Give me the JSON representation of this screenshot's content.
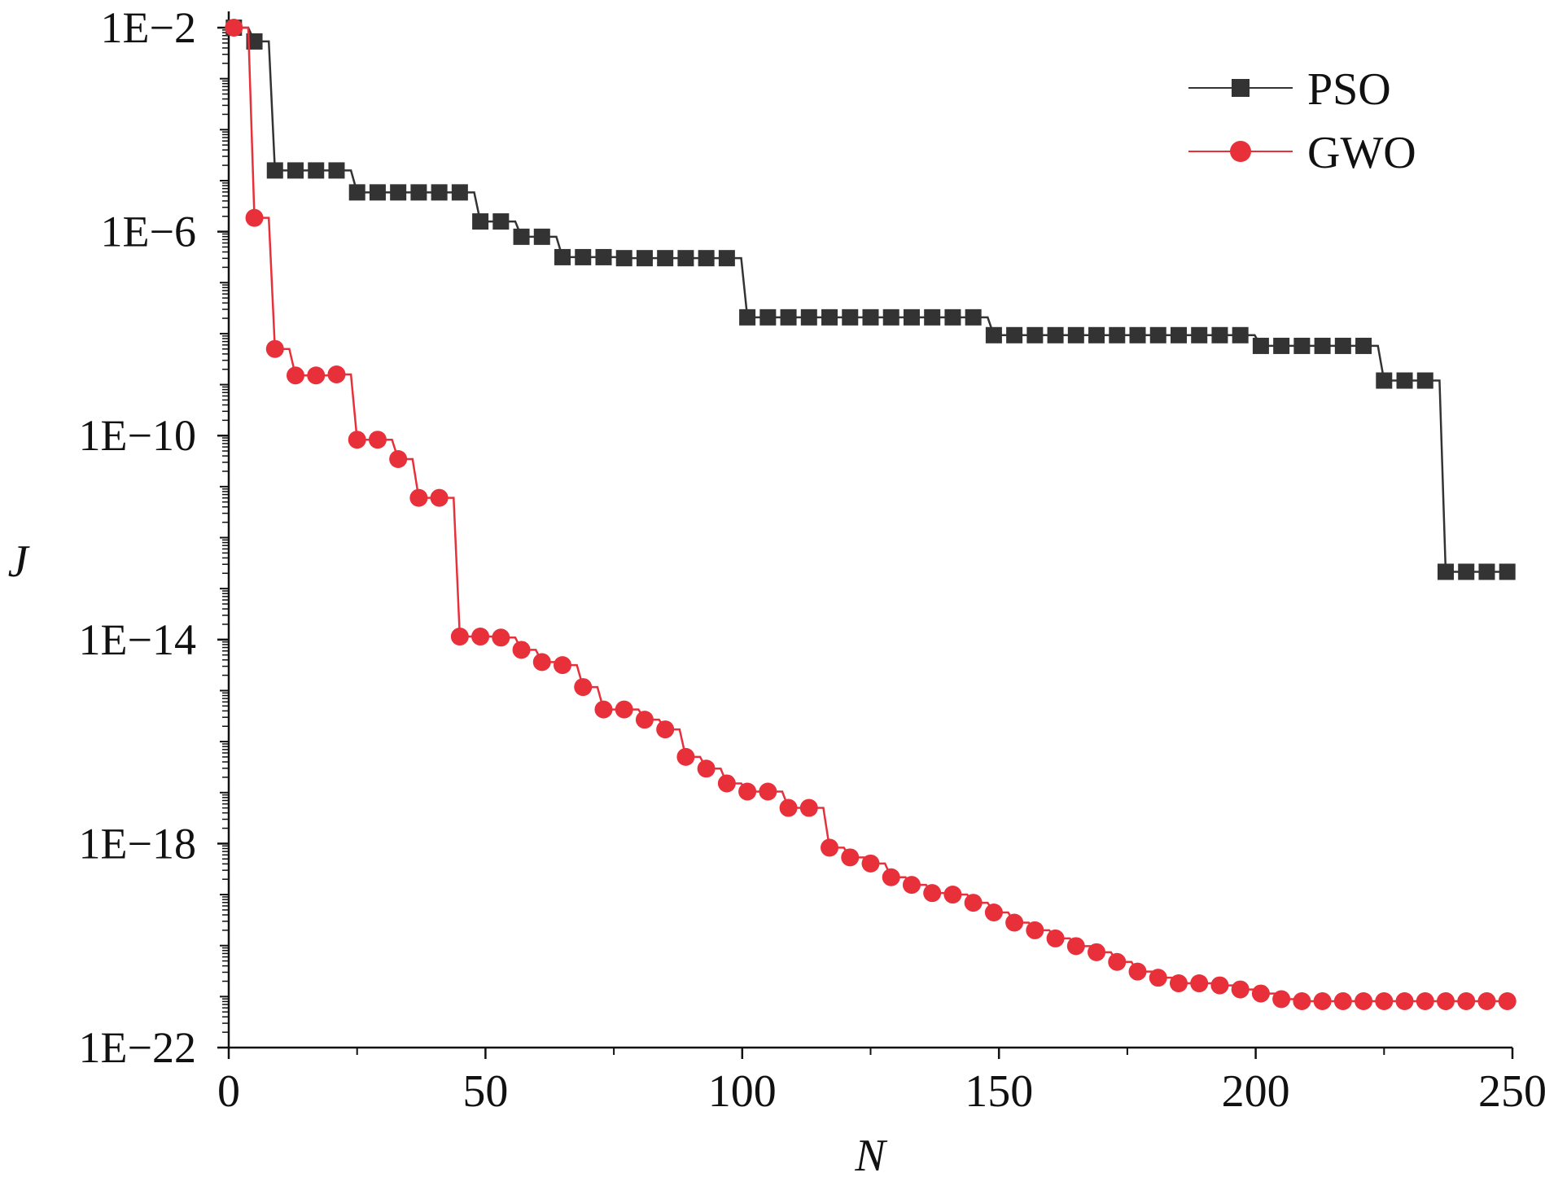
{
  "chart_data": {
    "type": "line",
    "title": "",
    "xlabel": "N",
    "ylabel": "J",
    "xlim": [
      0,
      250
    ],
    "ylim_log10": [
      -22,
      -2
    ],
    "yscale": "log",
    "x_ticks": [
      0,
      50,
      100,
      150,
      200,
      250
    ],
    "x_tick_labels": [
      "0",
      "50",
      "100",
      "150",
      "200",
      "250"
    ],
    "y_ticks_log10": [
      -2,
      -6,
      -10,
      -14,
      -18,
      -22
    ],
    "y_tick_labels": [
      "1E−2",
      "1E−6",
      "1E−10",
      "1E−14",
      "1E−18",
      "1E−22"
    ],
    "legend_placement": "top-right",
    "grid": false,
    "series": [
      {
        "name": "PSO",
        "color": "#333333",
        "marker": "square",
        "x": [
          1,
          5,
          9,
          13,
          17,
          21,
          25,
          29,
          33,
          37,
          41,
          45,
          49,
          53,
          57,
          61,
          65,
          69,
          73,
          77,
          81,
          85,
          89,
          93,
          97,
          101,
          105,
          109,
          113,
          117,
          121,
          125,
          129,
          133,
          137,
          141,
          145,
          149,
          153,
          157,
          161,
          165,
          169,
          173,
          177,
          181,
          185,
          189,
          193,
          197,
          201,
          205,
          209,
          213,
          217,
          221,
          225,
          229,
          233,
          237,
          241,
          245,
          249
        ],
        "log10_y": [
          -2.0,
          -2.27,
          -4.8,
          -4.8,
          -4.8,
          -4.8,
          -5.23,
          -5.23,
          -5.23,
          -5.23,
          -5.23,
          -5.23,
          -5.8,
          -5.8,
          -6.1,
          -6.1,
          -6.5,
          -6.5,
          -6.5,
          -6.52,
          -6.52,
          -6.52,
          -6.52,
          -6.52,
          -6.52,
          -7.68,
          -7.68,
          -7.68,
          -7.68,
          -7.68,
          -7.68,
          -7.68,
          -7.68,
          -7.68,
          -7.68,
          -7.68,
          -7.68,
          -8.03,
          -8.03,
          -8.03,
          -8.03,
          -8.03,
          -8.03,
          -8.03,
          -8.03,
          -8.03,
          -8.03,
          -8.03,
          -8.03,
          -8.03,
          -8.24,
          -8.24,
          -8.24,
          -8.24,
          -8.24,
          -8.24,
          -8.92,
          -8.92,
          -8.92,
          -12.67,
          -12.67,
          -12.67,
          -12.67
        ]
      },
      {
        "name": "GWO",
        "color": "#e8303a",
        "marker": "circle",
        "x": [
          1,
          5,
          9,
          13,
          17,
          21,
          25,
          29,
          33,
          37,
          41,
          45,
          49,
          53,
          57,
          61,
          65,
          69,
          73,
          77,
          81,
          85,
          89,
          93,
          97,
          101,
          105,
          109,
          113,
          117,
          121,
          125,
          129,
          133,
          137,
          141,
          145,
          149,
          153,
          157,
          161,
          165,
          169,
          173,
          177,
          181,
          185,
          189,
          193,
          197,
          201,
          205,
          209,
          213,
          217,
          221,
          225,
          229,
          233,
          237,
          241,
          245,
          249
        ],
        "log10_y": [
          -2.0,
          -5.73,
          -8.3,
          -8.82,
          -8.82,
          -8.8,
          -10.08,
          -10.08,
          -10.46,
          -11.22,
          -11.22,
          -13.94,
          -13.94,
          -13.96,
          -14.2,
          -14.44,
          -14.5,
          -14.93,
          -15.37,
          -15.37,
          -15.57,
          -15.76,
          -16.3,
          -16.53,
          -16.82,
          -16.98,
          -16.98,
          -17.3,
          -17.3,
          -18.08,
          -18.27,
          -18.39,
          -18.66,
          -18.81,
          -18.97,
          -19.0,
          -19.16,
          -19.35,
          -19.55,
          -19.7,
          -19.86,
          -20.01,
          -20.13,
          -20.32,
          -20.51,
          -20.63,
          -20.74,
          -20.74,
          -20.78,
          -20.86,
          -20.94,
          -21.05,
          -21.09,
          -21.09,
          -21.09,
          -21.09,
          -21.09,
          -21.09,
          -21.09,
          -21.09,
          -21.09,
          -21.09,
          -21.09
        ]
      }
    ]
  }
}
